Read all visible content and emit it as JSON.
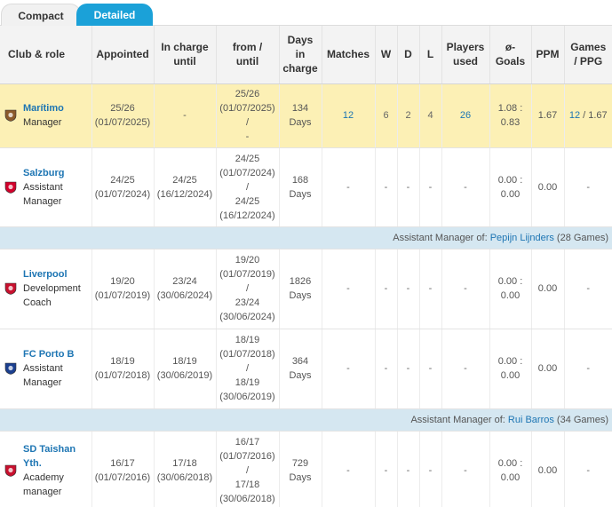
{
  "tabs": [
    "Compact",
    "Detailed"
  ],
  "headers": {
    "club_role": "Club & role",
    "appointed": "Appointed",
    "in_charge_until": [
      "In charge",
      "until"
    ],
    "from_until": [
      "from /",
      "until"
    ],
    "days": [
      "Days",
      "in",
      "charge"
    ],
    "matches": "Matches",
    "w": "W",
    "d": "D",
    "l": "L",
    "players_used": [
      "Players",
      "used"
    ],
    "goals": [
      "ø-",
      "Goals"
    ],
    "ppm": "PPM",
    "games_ppg": [
      "Games",
      "/ PPG"
    ]
  },
  "rows": [
    {
      "club": "Marítimo",
      "role": [
        "Manager"
      ],
      "crest_color": "#8b5a2b",
      "appointed": [
        "25/26",
        "(01/07/2025)"
      ],
      "until": [
        "-"
      ],
      "from_until": [
        "25/26",
        "(01/07/2025)",
        "/",
        "-"
      ],
      "days": [
        "134",
        "Days"
      ],
      "matches": "12",
      "w": "6",
      "d": "2",
      "l": "4",
      "players": "26",
      "goals": [
        "1.08 :",
        "0.83"
      ],
      "ppm": "1.67",
      "games": "12",
      "ppg": " / 1.67",
      "highlight": true
    },
    {
      "club": "Salzburg",
      "role": [
        "Assistant",
        "Manager"
      ],
      "crest_color": "#d2002b",
      "appointed": [
        "24/25",
        "(01/07/2024)"
      ],
      "until": [
        "24/25",
        "(16/12/2024)"
      ],
      "from_until": [
        "24/25",
        "(01/07/2024)",
        "/",
        "24/25",
        "(16/12/2024)"
      ],
      "days": [
        "168",
        "Days"
      ],
      "matches": "-",
      "w": "-",
      "d": "-",
      "l": "-",
      "players": "-",
      "goals": [
        "0.00 :",
        "0.00"
      ],
      "ppm": "0.00",
      "games": "-",
      "ppg": "",
      "info": {
        "prefix": "Assistant Manager of: ",
        "person": "Pepijn Lijnders",
        "suffix": " (28 Games)"
      }
    },
    {
      "club": "Liverpool",
      "role": [
        "Development",
        "Coach"
      ],
      "crest_color": "#c8102e",
      "appointed": [
        "19/20",
        "(01/07/2019)"
      ],
      "until": [
        "23/24",
        "(30/06/2024)"
      ],
      "from_until": [
        "19/20",
        "(01/07/2019)",
        "/",
        "23/24",
        "(30/06/2024)"
      ],
      "days": [
        "1826",
        "Days"
      ],
      "matches": "-",
      "w": "-",
      "d": "-",
      "l": "-",
      "players": "-",
      "goals": [
        "0.00 :",
        "0.00"
      ],
      "ppm": "0.00",
      "games": "-",
      "ppg": ""
    },
    {
      "club": "FC Porto B",
      "role": [
        "Assistant",
        "Manager"
      ],
      "crest_color": "#1b3f8f",
      "appointed": [
        "18/19",
        "(01/07/2018)"
      ],
      "until": [
        "18/19",
        "(30/06/2019)"
      ],
      "from_until": [
        "18/19",
        "(01/07/2018)",
        "/",
        "18/19",
        "(30/06/2019)"
      ],
      "days": [
        "364",
        "Days"
      ],
      "matches": "-",
      "w": "-",
      "d": "-",
      "l": "-",
      "players": "-",
      "goals": [
        "0.00 :",
        "0.00"
      ],
      "ppm": "0.00",
      "games": "-",
      "ppg": "",
      "info": {
        "prefix": "Assistant Manager of: ",
        "person": "Rui Barros",
        "suffix": " (34 Games)"
      }
    },
    {
      "club": "SD Taishan Yth.",
      "role": [
        "Academy",
        "manager"
      ],
      "crest_color": "#c8102e",
      "appointed": [
        "16/17",
        "(01/07/2016)"
      ],
      "until": [
        "17/18",
        "(30/06/2018)"
      ],
      "from_until": [
        "16/17",
        "(01/07/2016)",
        "/",
        "17/18",
        "(30/06/2018)"
      ],
      "days": [
        "729",
        "Days"
      ],
      "matches": "-",
      "w": "-",
      "d": "-",
      "l": "-",
      "players": "-",
      "goals": [
        "0.00 :",
        "0.00"
      ],
      "ppm": "0.00",
      "games": "-",
      "ppg": ""
    }
  ]
}
